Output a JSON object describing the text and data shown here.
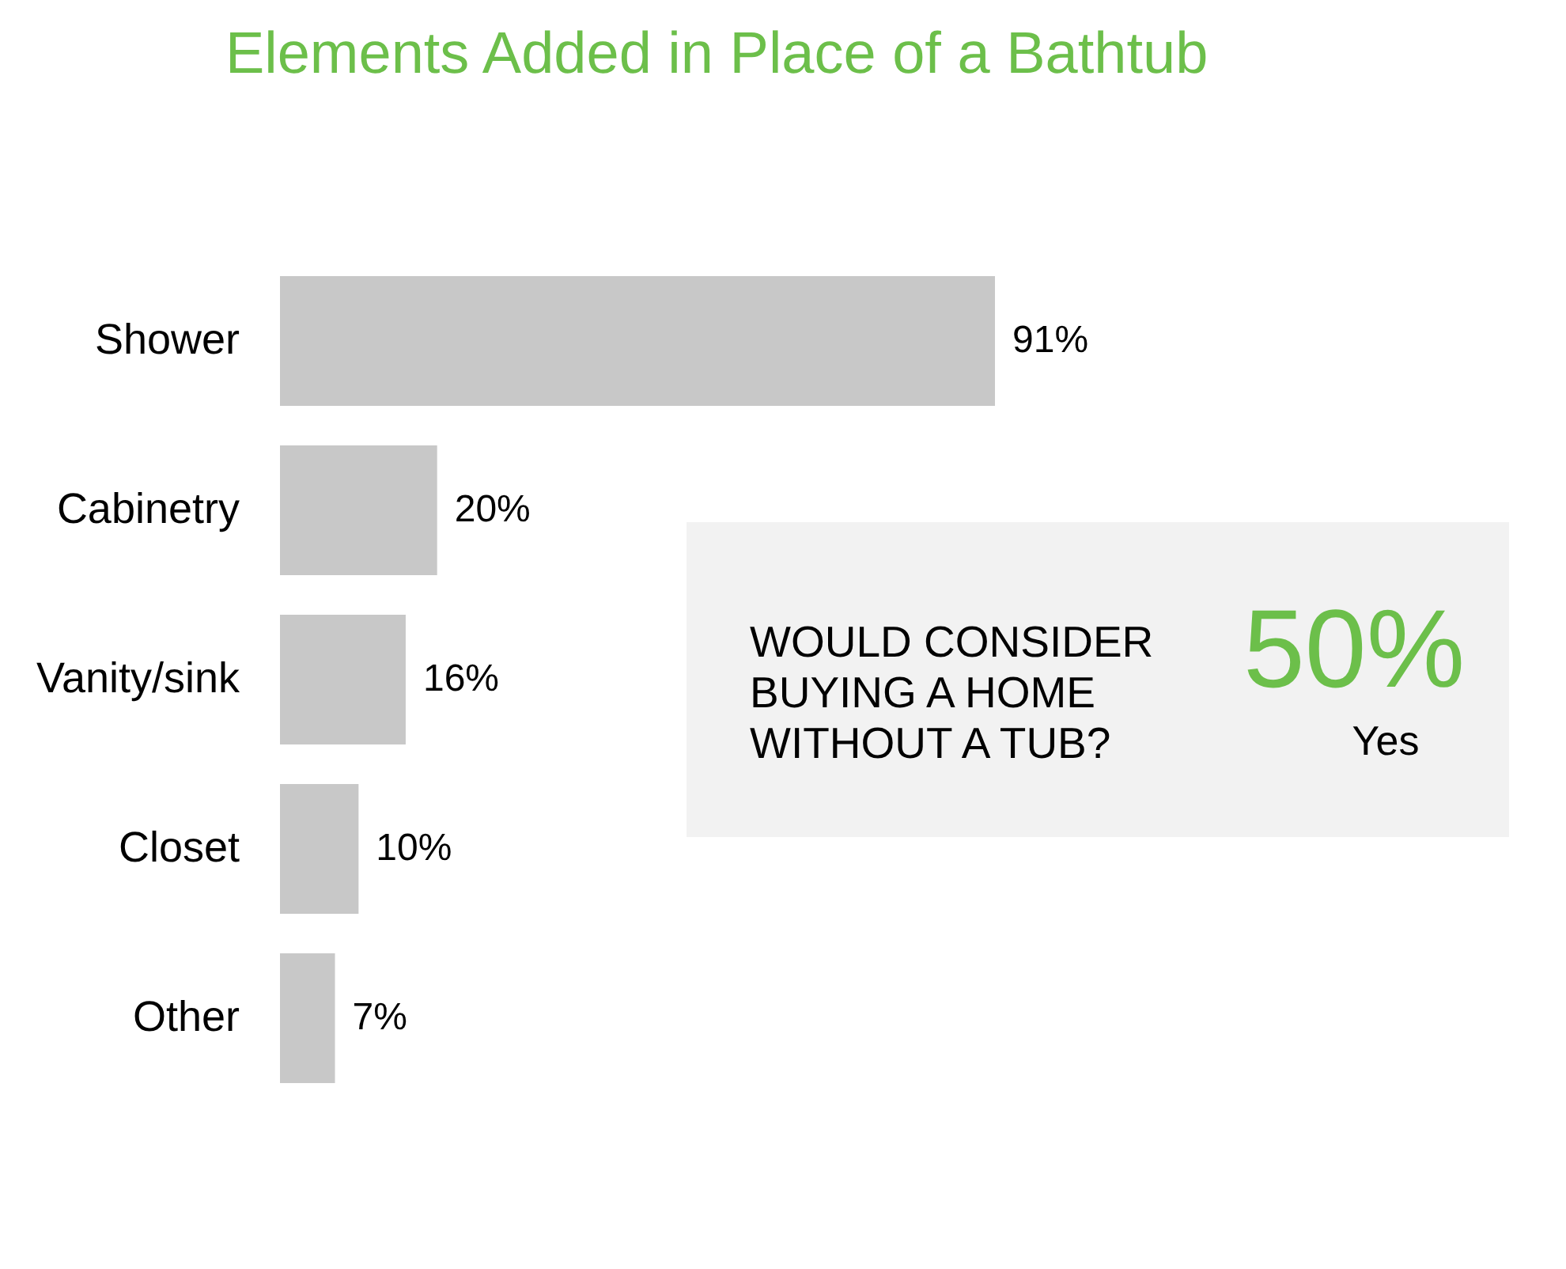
{
  "chart_data": [
    {
      "type": "bar",
      "orientation": "horizontal",
      "title": "Elements Added in Place of a Bathtub",
      "categories": [
        "Shower",
        "Cabinetry",
        "Vanity/sink",
        "Closet",
        "Other"
      ],
      "values": [
        91,
        20,
        16,
        10,
        7
      ],
      "value_labels": [
        "91%",
        "20%",
        "16%",
        "10%",
        "7%"
      ],
      "color": "#c8c8c8",
      "tick_labels": "y"
    },
    {
      "type": "other",
      "annotations": [
        "WOULD CONSIDER\nBUYING  A HOME\nWITHOUT A TUB?",
        "50%",
        "Yes"
      ]
    }
  ]
}
